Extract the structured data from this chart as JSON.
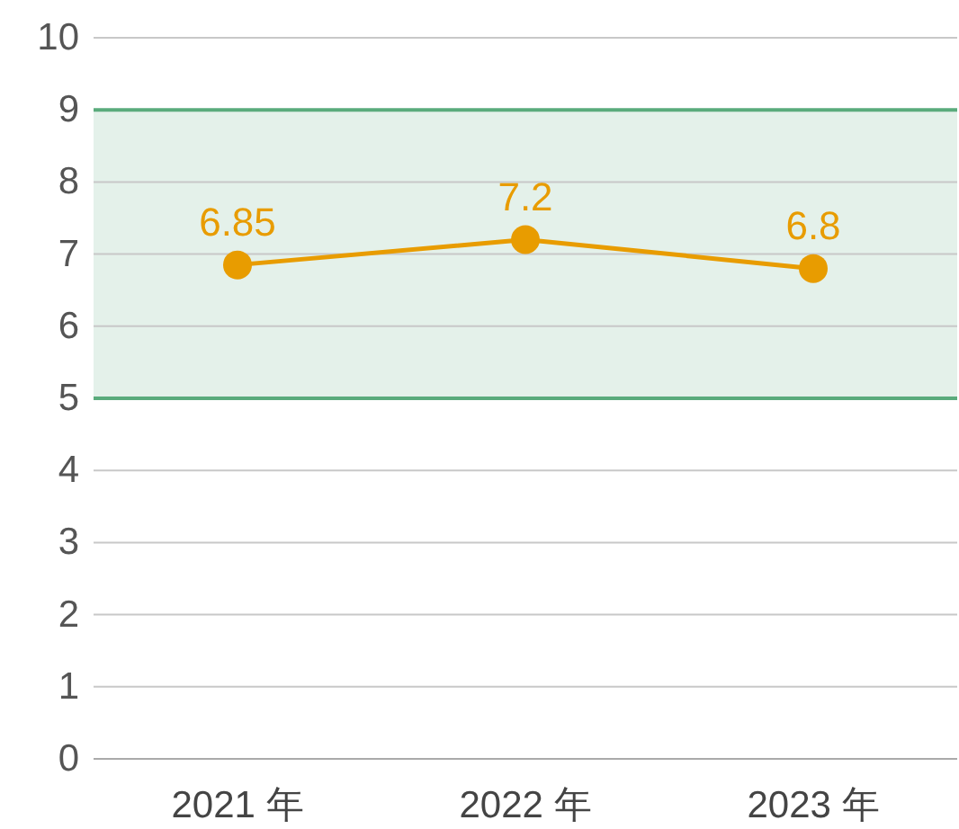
{
  "chart_data": {
    "type": "line",
    "categories": [
      "2021 年",
      "2022 年",
      "2023 年"
    ],
    "series": [
      {
        "color": "#e89c00",
        "values": [
          6.85,
          7.2,
          6.8
        ]
      }
    ],
    "ylim": [
      0,
      10
    ],
    "yticks": [
      0,
      1,
      2,
      3,
      4,
      5,
      6,
      7,
      8,
      9,
      10
    ],
    "grid": "y",
    "marker": "circle",
    "data_labels": true,
    "bands": [
      {
        "axis": "y",
        "from": 5,
        "to": 9,
        "color": "#5aab7c"
      }
    ]
  }
}
